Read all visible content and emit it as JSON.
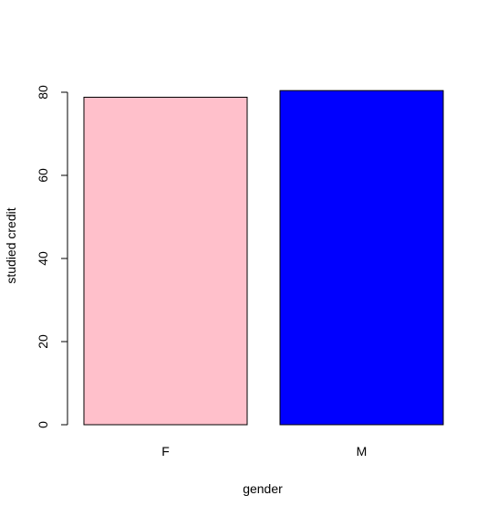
{
  "chart_data": {
    "type": "bar",
    "title": "",
    "xlabel": "gender",
    "ylabel": "studied credit",
    "categories": [
      "F",
      "M"
    ],
    "values": [
      78.8,
      80.4
    ],
    "colors": [
      "#ffc0cb",
      "#0000ff"
    ],
    "ylim": [
      0,
      80
    ],
    "yticks": [
      "0",
      "20",
      "40",
      "60",
      "80"
    ],
    "grid": false,
    "legend": "none"
  }
}
